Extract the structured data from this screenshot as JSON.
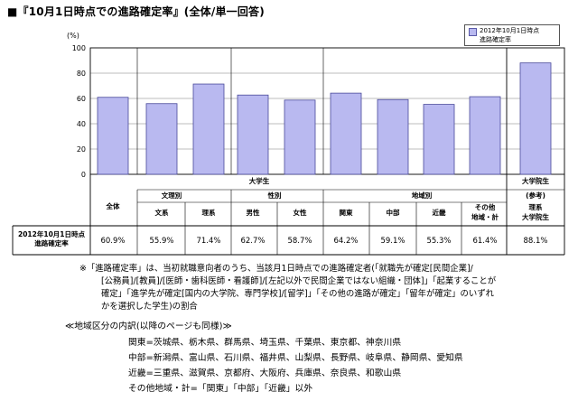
{
  "title": "■『10月1日時点での進路確定率』(全体/単一回答)",
  "chart_data": {
    "type": "bar",
    "ylabel": "(%)",
    "ylim": [
      0,
      100
    ],
    "yticks": [
      0,
      20,
      40,
      60,
      80,
      100
    ],
    "grid": true,
    "legend": {
      "position": "top-right",
      "entries": [
        "2012年10月1日時点",
        "進路確定率"
      ]
    },
    "bar_color": "#b9b9f0",
    "categories": [
      "全体",
      "文系",
      "理系",
      "男性",
      "女性",
      "関東",
      "中部",
      "近畿",
      "その他 地域・計",
      "理系 大学院生"
    ],
    "values": [
      60.9,
      55.9,
      71.4,
      62.7,
      58.7,
      64.2,
      59.1,
      55.3,
      61.4,
      88.1
    ],
    "value_labels": [
      "60.9%",
      "55.9%",
      "71.4%",
      "62.7%",
      "58.7%",
      "64.2%",
      "59.1%",
      "55.3%",
      "61.4%",
      "88.1%"
    ]
  },
  "table": {
    "group_daigakusei": "大学生",
    "group_daigakuinsei": "大学院生",
    "sub_bunri": "文理別",
    "sub_seibetsu": "性別",
    "sub_chiiki": "地域別",
    "sub_sanko": "(参考)",
    "col_zentai": "全体",
    "col_bunkei": "文系",
    "col_rikei": "理系",
    "col_dansei": "男性",
    "col_josei": "女性",
    "col_kanto": "関東",
    "col_chubu": "中部",
    "col_kinki": "近畿",
    "col_sonota_1": "その他",
    "col_sonota_2": "地域・計",
    "col_in_1": "理系",
    "col_in_2": "大学院生",
    "row_label_1": "2012年10月1日時点",
    "row_label_2": "進路確定率"
  },
  "notes": [
    "※「進路確定率」は、当初就職意向者のうち、当該月1日時点での進路確定者(「就職先が確定[民間企業]/",
    "[公務員]/[教員]/[医師・歯科医師・看護師]/[左記以外で民間企業ではない組織・団体]」「起業することが",
    "確定」「進学先が確定[国内の大学院、専門学校]/[留学]」「その他の進路が確定」「留年が確定」のいずれ",
    "かを選択した学生)の割合"
  ],
  "region_heading": "≪地域区分の内訳(以降のページも同様)≫",
  "regions": [
    "関東=茨城県、栃木県、群馬県、埼玉県、千葉県、東京都、神奈川県",
    "中部=新潟県、富山県、石川県、福井県、山梨県、長野県、岐阜県、静岡県、愛知県",
    "近畿=三重県、滋賀県、京都府、大阪府、兵庫県、奈良県、和歌山県",
    "その他地域・計=「関東」「中部」「近畿」以外"
  ]
}
